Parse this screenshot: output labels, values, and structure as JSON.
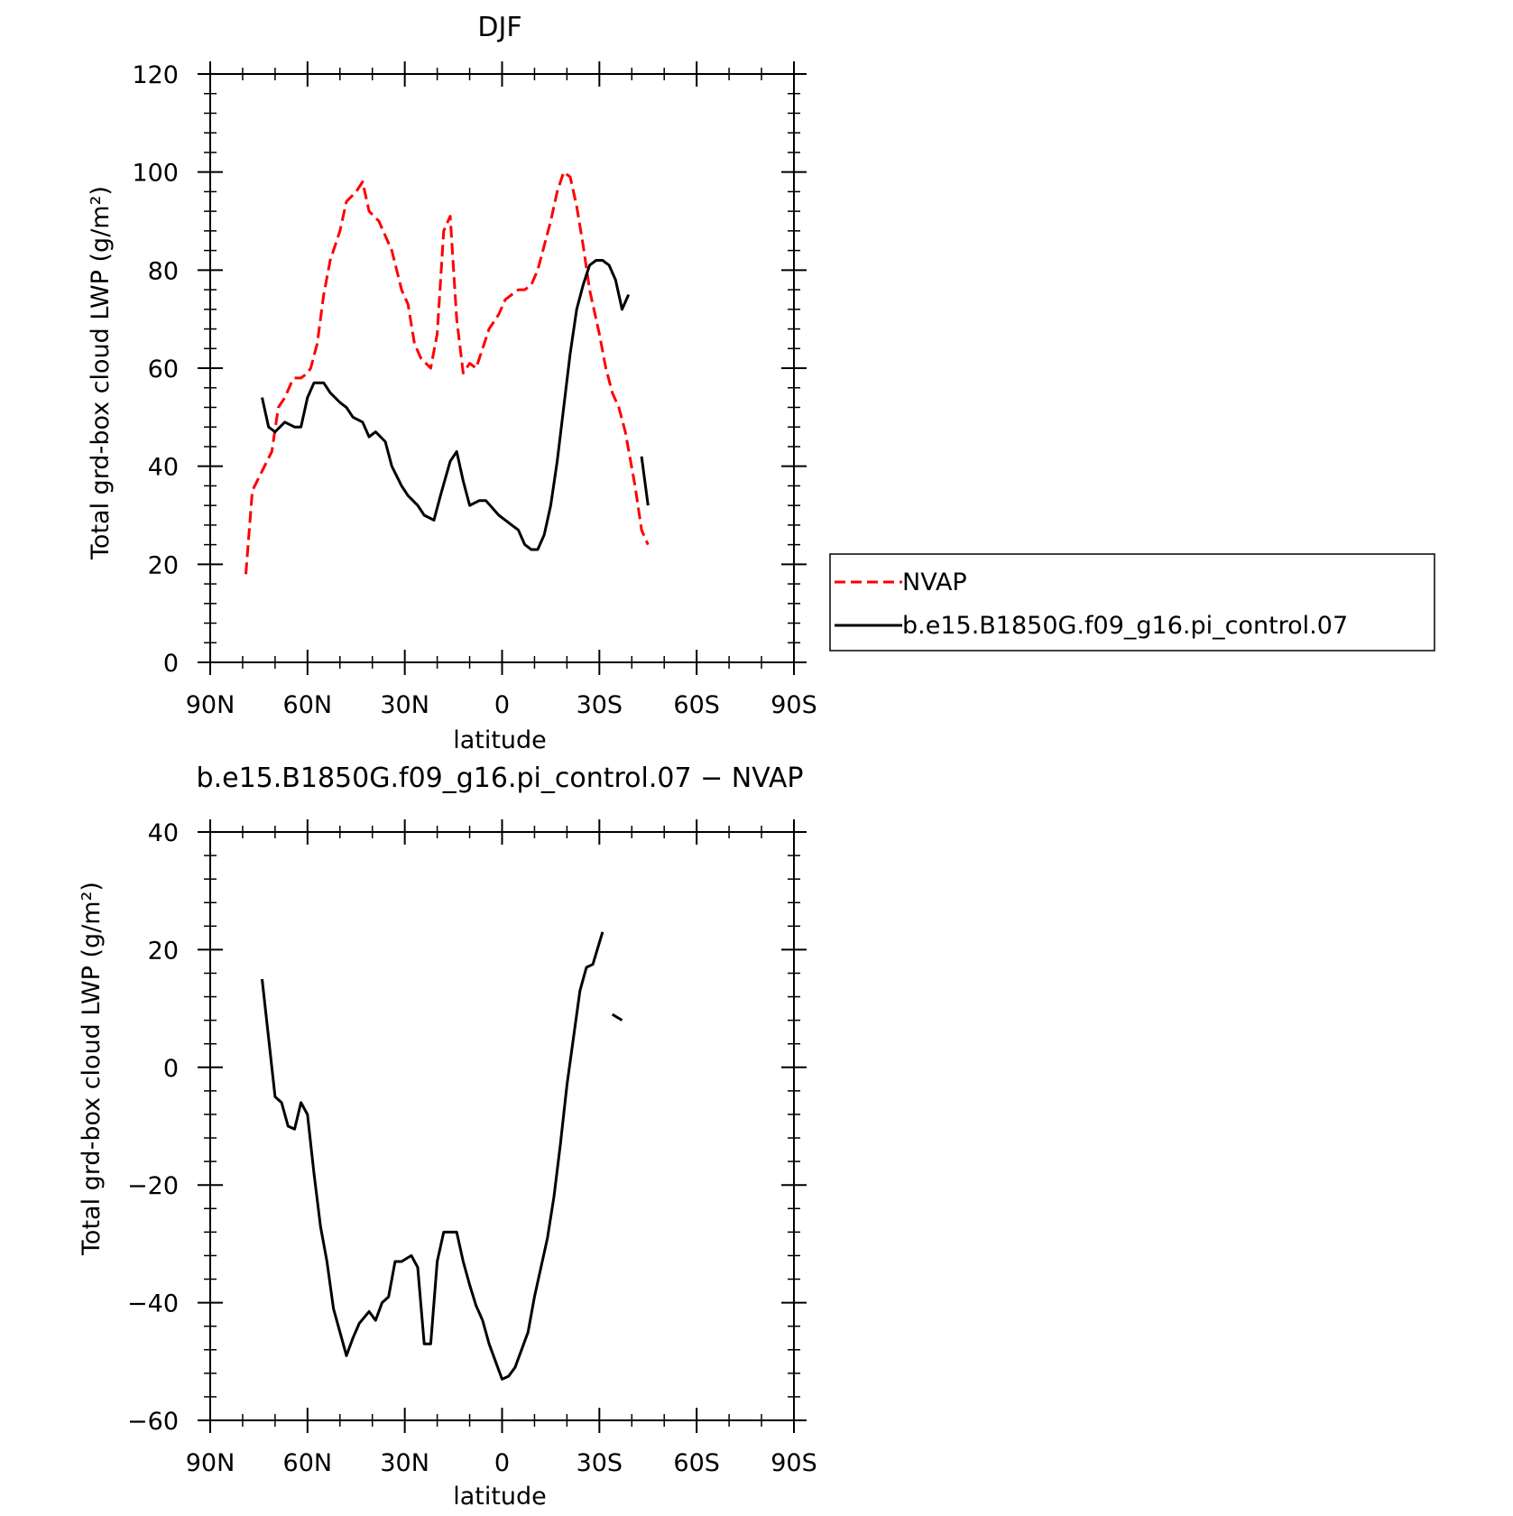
{
  "chart_data": [
    {
      "type": "line",
      "title": "DJF",
      "xlabel": "latitude",
      "ylabel": "Total grd-box cloud LWP (g/m²)",
      "xlim": [
        90,
        -90
      ],
      "ylim": [
        0,
        120
      ],
      "xticks": [
        90,
        60,
        30,
        0,
        -30,
        -60,
        -90
      ],
      "xtick_labels": [
        "90N",
        "60N",
        "30N",
        "0",
        "30S",
        "60S",
        "90S"
      ],
      "yticks": [
        0,
        20,
        40,
        60,
        80,
        100,
        120
      ],
      "ytick_labels": [
        "0",
        "20",
        "40",
        "60",
        "80",
        "100",
        "120"
      ],
      "legend": {
        "placement": "right",
        "entries": [
          "NVAP",
          "b.e15.B1850G.f09_g16.pi_control.07"
        ]
      },
      "series": [
        {
          "name": "NVAP",
          "color": "#ff0000",
          "style": "dashed",
          "segments": [
            [
              [
                79,
                18
              ],
              [
                77,
                35
              ],
              [
                74,
                39
              ],
              [
                71,
                43
              ],
              [
                69,
                52
              ],
              [
                67,
                54
              ],
              [
                65,
                57
              ],
              [
                64,
                58
              ],
              [
                62,
                58
              ],
              [
                60,
                59
              ],
              [
                59,
                60
              ],
              [
                57,
                65
              ],
              [
                55,
                75
              ],
              [
                53,
                82
              ],
              [
                50,
                88
              ],
              [
                48,
                94
              ],
              [
                45,
                96
              ],
              [
                43,
                98
              ],
              [
                41,
                92
              ],
              [
                38,
                90
              ],
              [
                36,
                87
              ],
              [
                34,
                84
              ],
              [
                31,
                76
              ],
              [
                29,
                73
              ],
              [
                27,
                65
              ],
              [
                25,
                62
              ],
              [
                22,
                60
              ],
              [
                20,
                67
              ],
              [
                18,
                88
              ],
              [
                16,
                91
              ],
              [
                14,
                70
              ],
              [
                12,
                59
              ],
              [
                10,
                61
              ],
              [
                8,
                60
              ],
              [
                6,
                64
              ],
              [
                4,
                68
              ],
              [
                1,
                71
              ],
              [
                -1,
                74
              ],
              [
                -3,
                75
              ],
              [
                -5,
                76
              ],
              [
                -7,
                76
              ],
              [
                -9,
                77
              ],
              [
                -11,
                80
              ],
              [
                -13,
                85
              ],
              [
                -15,
                90
              ],
              [
                -17,
                96
              ],
              [
                -19,
                100
              ],
              [
                -21,
                99
              ],
              [
                -23,
                93
              ],
              [
                -25,
                85
              ],
              [
                -27,
                76
              ],
              [
                -30,
                67
              ],
              [
                -32,
                60
              ],
              [
                -34,
                55
              ],
              [
                -36,
                52
              ],
              [
                -38,
                47
              ],
              [
                -41,
                36
              ],
              [
                -43,
                27
              ],
              [
                -45,
                24
              ]
            ]
          ]
        },
        {
          "name": "b.e15.B1850G.f09_g16.pi_control.07",
          "color": "#000000",
          "style": "solid",
          "segments": [
            [
              [
                74,
                54
              ],
              [
                72,
                48
              ],
              [
                70,
                47
              ],
              [
                67,
                49
              ],
              [
                64,
                48
              ],
              [
                62,
                48
              ],
              [
                60,
                54
              ],
              [
                58,
                57
              ],
              [
                55,
                57
              ],
              [
                53,
                55
              ],
              [
                50,
                53
              ],
              [
                48,
                52
              ],
              [
                46,
                50
              ],
              [
                43,
                49
              ],
              [
                41,
                46
              ],
              [
                39,
                47
              ],
              [
                36,
                45
              ],
              [
                34,
                40
              ],
              [
                31,
                36
              ],
              [
                29,
                34
              ],
              [
                26,
                32
              ],
              [
                24,
                30
              ],
              [
                21,
                29
              ],
              [
                19,
                34
              ],
              [
                16,
                41
              ],
              [
                14,
                43
              ],
              [
                12,
                37
              ],
              [
                10,
                32
              ],
              [
                7,
                33
              ],
              [
                5,
                33
              ],
              [
                1,
                30
              ],
              [
                -1,
                29
              ],
              [
                -3,
                28
              ],
              [
                -5,
                27
              ],
              [
                -7,
                24
              ],
              [
                -9,
                23
              ],
              [
                -11,
                23
              ],
              [
                -13,
                26
              ],
              [
                -15,
                32
              ],
              [
                -17,
                41
              ],
              [
                -19,
                52
              ],
              [
                -21,
                63
              ],
              [
                -23,
                72
              ],
              [
                -25,
                77
              ],
              [
                -27,
                81
              ],
              [
                -29,
                82
              ],
              [
                -31,
                82
              ],
              [
                -33,
                81
              ],
              [
                -35,
                78
              ],
              [
                -37,
                72
              ],
              [
                -39,
                75
              ]
            ],
            [
              [
                -43,
                42
              ],
              [
                -45,
                32
              ]
            ]
          ]
        }
      ]
    },
    {
      "type": "line",
      "title": "b.e15.B1850G.f09_g16.pi_control.07 − NVAP",
      "xlabel": "latitude",
      "ylabel": "Total grd-box cloud LWP (g/m²)",
      "xlim": [
        90,
        -90
      ],
      "ylim": [
        -60,
        40
      ],
      "xticks": [
        90,
        60,
        30,
        0,
        -30,
        -60,
        -90
      ],
      "xtick_labels": [
        "90N",
        "60N",
        "30N",
        "0",
        "30S",
        "60S",
        "90S"
      ],
      "yticks": [
        -60,
        -40,
        -20,
        0,
        20,
        40
      ],
      "ytick_labels": [
        "−60",
        "−40",
        "−20",
        "0",
        "20",
        "40"
      ],
      "series": [
        {
          "color": "#000000",
          "style": "solid",
          "segments": [
            [
              [
                74,
                15
              ],
              [
                72,
                5
              ],
              [
                70,
                -5
              ],
              [
                68,
                -6
              ],
              [
                66,
                -10
              ],
              [
                64,
                -10.5
              ],
              [
                62,
                -6
              ],
              [
                60,
                -8
              ],
              [
                58,
                -18
              ],
              [
                56,
                -27
              ],
              [
                54,
                -33
              ],
              [
                52,
                -41
              ],
              [
                50,
                -45
              ],
              [
                48,
                -49
              ],
              [
                46,
                -46
              ],
              [
                44,
                -43.5
              ],
              [
                41,
                -41.5
              ],
              [
                39,
                -43
              ],
              [
                37,
                -40
              ],
              [
                35,
                -39
              ],
              [
                33,
                -33
              ],
              [
                31,
                -33
              ],
              [
                28,
                -32
              ],
              [
                26,
                -34
              ],
              [
                24,
                -47
              ],
              [
                22,
                -47
              ],
              [
                20,
                -33
              ],
              [
                18,
                -28
              ],
              [
                16,
                -28
              ],
              [
                14,
                -28
              ],
              [
                12,
                -33
              ],
              [
                10,
                -37
              ],
              [
                8,
                -40.5
              ],
              [
                6,
                -43
              ],
              [
                4,
                -47
              ],
              [
                2,
                -50
              ],
              [
                0,
                -53
              ],
              [
                -2,
                -52.5
              ],
              [
                -4,
                -51
              ],
              [
                -6,
                -48
              ],
              [
                -8,
                -45
              ],
              [
                -10,
                -39
              ],
              [
                -12,
                -34
              ],
              [
                -14,
                -29
              ],
              [
                -16,
                -22
              ],
              [
                -18,
                -13
              ],
              [
                -20,
                -3
              ],
              [
                -22,
                5
              ],
              [
                -24,
                13
              ],
              [
                -26,
                17
              ],
              [
                -28,
                17.5
              ],
              [
                -31,
                23
              ]
            ],
            [
              [
                -34,
                9
              ],
              [
                -37,
                8
              ]
            ]
          ]
        }
      ]
    }
  ]
}
